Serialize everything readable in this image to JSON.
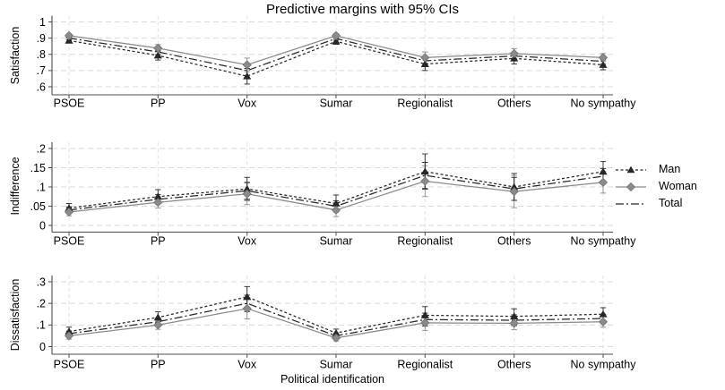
{
  "title": "Predictive margins with 95% CIs",
  "xlabel": "Political identification",
  "categories": [
    "PSOE",
    "PP",
    "Vox",
    "Sumar",
    "Regionalist",
    "Others",
    "No sympathy"
  ],
  "legend": {
    "position": "right-middle",
    "items": [
      {
        "key": "man",
        "label": "Man"
      },
      {
        "key": "woman",
        "label": "Woman"
      },
      {
        "key": "total",
        "label": "Total"
      }
    ]
  },
  "colors": {
    "man": "#262626",
    "woman": "#8a8a8a",
    "total": "#262626",
    "grid": "#d9d9d9",
    "axis": "#4d4d4d",
    "text": "#000000",
    "background": "#ffffff"
  },
  "chart_data": [
    {
      "type": "line",
      "panel": "top",
      "ylabel": "Satisfaction",
      "ylim": [
        0.6,
        1.0
      ],
      "grid": true,
      "yticks": [
        {
          "v": 0.6,
          "label": ".6"
        },
        {
          "v": 0.7,
          "label": ".7"
        },
        {
          "v": 0.8,
          "label": ".8"
        },
        {
          "v": 0.9,
          "label": ".9"
        },
        {
          "v": 1.0,
          "label": "1"
        }
      ],
      "series": [
        {
          "name": "Man",
          "key": "man",
          "values": [
            0.885,
            0.793,
            0.665,
            0.88,
            0.74,
            0.775,
            0.735
          ],
          "ci": [
            0.015,
            0.028,
            0.048,
            0.018,
            0.04,
            0.035,
            0.03
          ]
        },
        {
          "name": "Woman",
          "key": "woman",
          "values": [
            0.915,
            0.838,
            0.735,
            0.915,
            0.78,
            0.805,
            0.78
          ],
          "ci": [
            0.012,
            0.022,
            0.042,
            0.014,
            0.035,
            0.03,
            0.025
          ]
        },
        {
          "name": "Total",
          "key": "total",
          "values": [
            0.9,
            0.815,
            0.7,
            0.898,
            0.76,
            0.79,
            0.757
          ],
          "ci": [
            0.01,
            0.016,
            0.03,
            0.011,
            0.028,
            0.022,
            0.018
          ]
        }
      ]
    },
    {
      "type": "line",
      "panel": "middle",
      "ylabel": "Indifference",
      "ylim": [
        0.0,
        0.2
      ],
      "grid": true,
      "yticks": [
        {
          "v": 0.0,
          "label": "0"
        },
        {
          "v": 0.05,
          "label": ".05"
        },
        {
          "v": 0.1,
          "label": ".1"
        },
        {
          "v": 0.15,
          "label": ".15"
        },
        {
          "v": 0.2,
          "label": ".2"
        }
      ],
      "series": [
        {
          "name": "Man",
          "key": "man",
          "values": [
            0.045,
            0.075,
            0.095,
            0.057,
            0.14,
            0.1,
            0.14
          ],
          "ci": [
            0.012,
            0.018,
            0.03,
            0.022,
            0.046,
            0.035,
            0.026
          ]
        },
        {
          "name": "Woman",
          "key": "woman",
          "values": [
            0.035,
            0.06,
            0.082,
            0.04,
            0.115,
            0.088,
            0.112
          ],
          "ci": [
            0.01,
            0.015,
            0.028,
            0.017,
            0.04,
            0.042,
            0.028
          ]
        },
        {
          "name": "Total",
          "key": "total",
          "values": [
            0.04,
            0.068,
            0.09,
            0.05,
            0.13,
            0.095,
            0.128
          ],
          "ci": [
            0.008,
            0.012,
            0.022,
            0.014,
            0.034,
            0.03,
            0.02
          ]
        }
      ]
    },
    {
      "type": "line",
      "panel": "bottom",
      "ylabel": "Dissatisfaction",
      "ylim": [
        0.0,
        0.3
      ],
      "grid": true,
      "yticks": [
        {
          "v": 0.0,
          "label": "0"
        },
        {
          "v": 0.1,
          "label": ".1"
        },
        {
          "v": 0.2,
          "label": ".2"
        },
        {
          "v": 0.3,
          "label": ".3"
        }
      ],
      "series": [
        {
          "name": "Man",
          "key": "man",
          "values": [
            0.07,
            0.135,
            0.23,
            0.063,
            0.145,
            0.14,
            0.15
          ],
          "ci": [
            0.02,
            0.026,
            0.048,
            0.018,
            0.04,
            0.035,
            0.03
          ]
        },
        {
          "name": "Woman",
          "key": "woman",
          "values": [
            0.05,
            0.1,
            0.176,
            0.04,
            0.11,
            0.108,
            0.115
          ],
          "ci": [
            0.015,
            0.02,
            0.048,
            0.014,
            0.035,
            0.03,
            0.025
          ]
        },
        {
          "name": "Total",
          "key": "total",
          "values": [
            0.06,
            0.115,
            0.2,
            0.05,
            0.125,
            0.122,
            0.13
          ],
          "ci": [
            0.012,
            0.017,
            0.038,
            0.011,
            0.03,
            0.025,
            0.02
          ]
        }
      ]
    }
  ]
}
